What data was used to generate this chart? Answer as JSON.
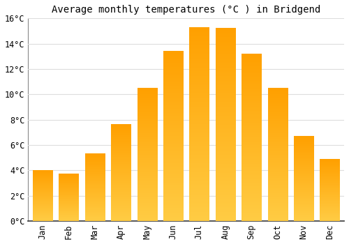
{
  "title": "Average monthly temperatures (°C ) in Bridgend",
  "months": [
    "Jan",
    "Feb",
    "Mar",
    "Apr",
    "May",
    "Jun",
    "Jul",
    "Aug",
    "Sep",
    "Oct",
    "Nov",
    "Dec"
  ],
  "temperatures": [
    4.0,
    3.7,
    5.3,
    7.6,
    10.5,
    13.4,
    15.3,
    15.2,
    13.2,
    10.5,
    6.7,
    4.9
  ],
  "bar_color_light": "#FFCC44",
  "bar_color_dark": "#FFA000",
  "background_color": "#FFFFFF",
  "grid_color": "#DDDDDD",
  "ylim": [
    0,
    16
  ],
  "ytick_step": 2,
  "title_fontsize": 10,
  "tick_fontsize": 8.5,
  "font_family": "monospace"
}
